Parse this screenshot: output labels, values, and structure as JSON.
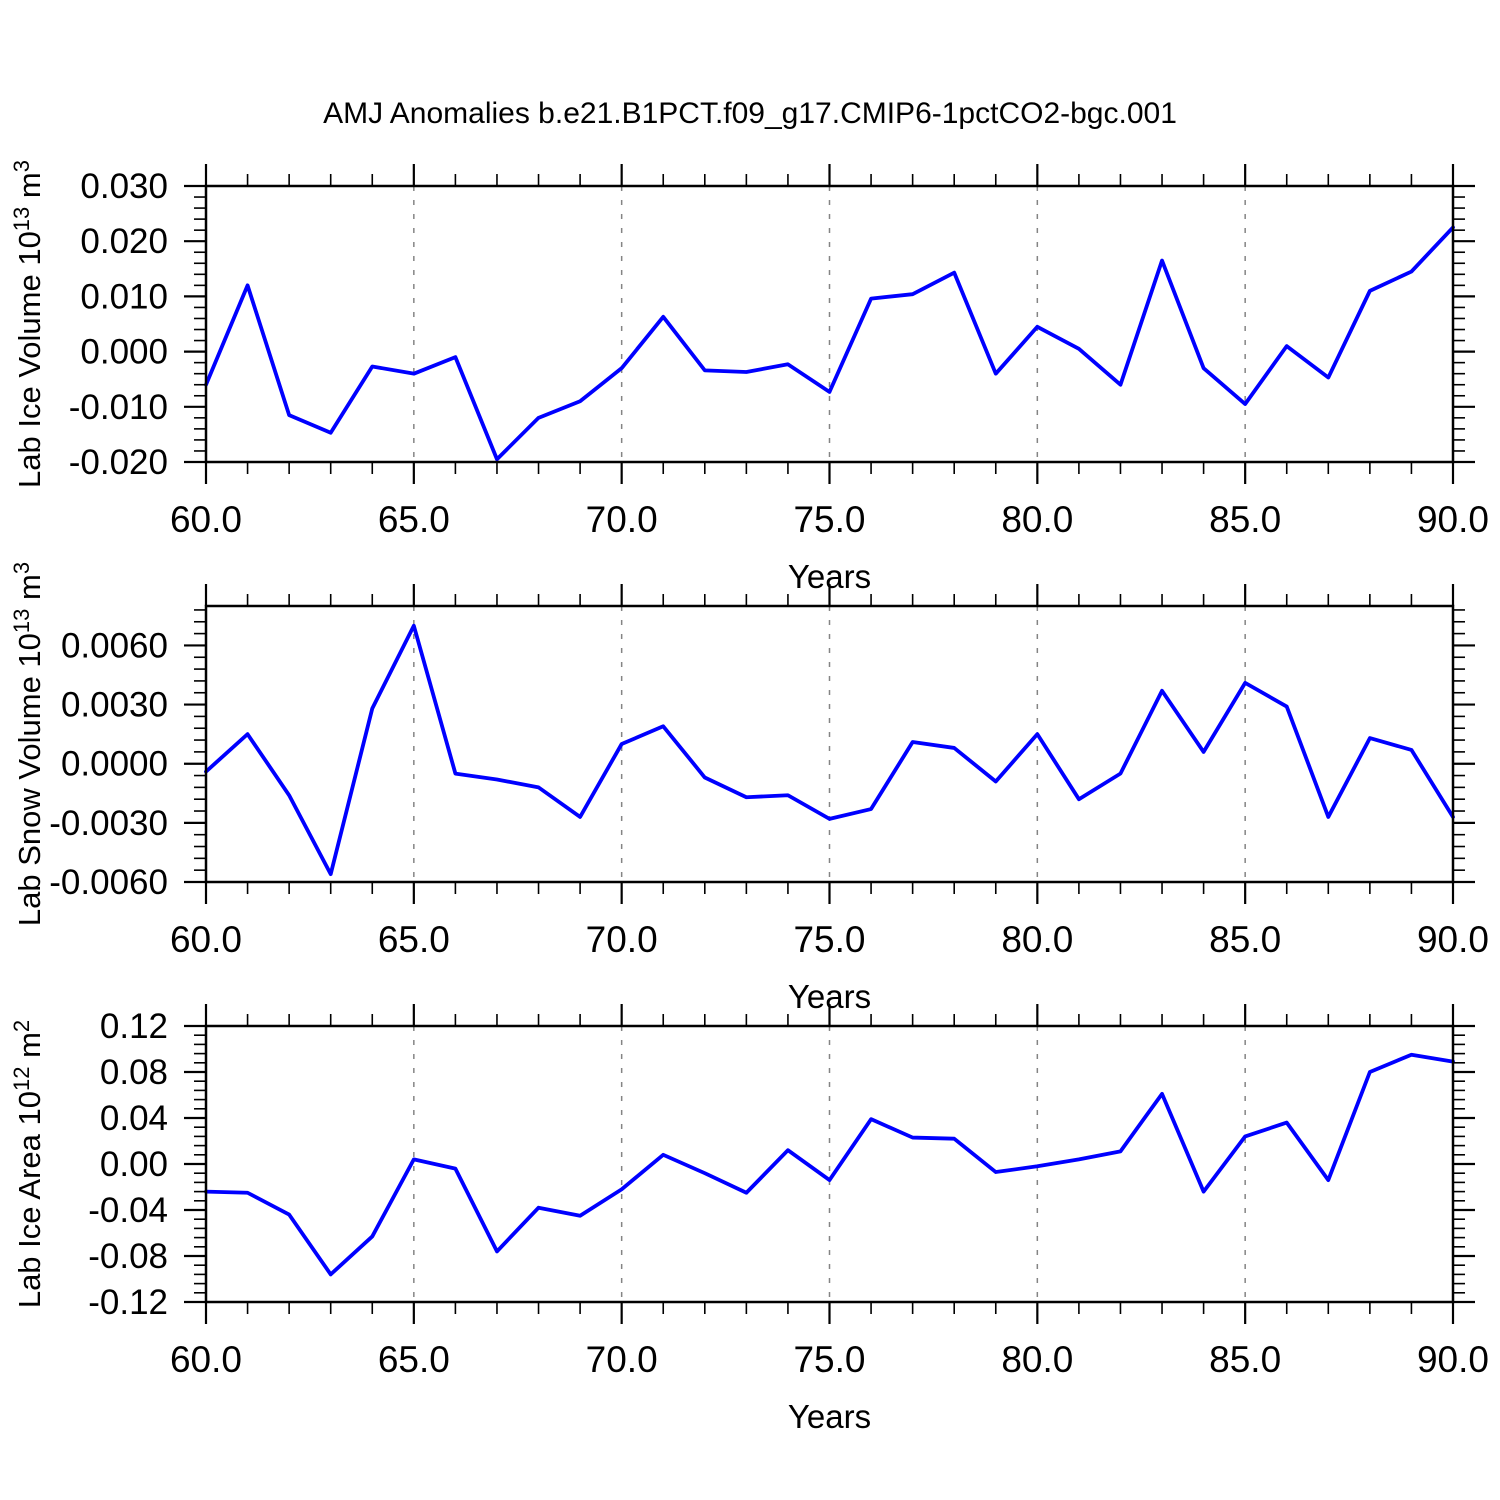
{
  "title": "AMJ Anomalies b.e21.B1PCT.f09_g17.CMIP6-1pctCO2-bgc.001",
  "colors": {
    "line": "#0000ff",
    "axis": "#000000",
    "grid": "#848484",
    "background": "#ffffff"
  },
  "chart_data": {
    "type": "line",
    "suptitle": "AMJ Anomalies b.e21.B1PCT.f09_g17.CMIP6-1pctCO2-bgc.001",
    "legend": "none",
    "grid": "vertical-dashed",
    "x": {
      "label": "Years",
      "range": [
        60,
        90
      ],
      "tick_values": [
        60,
        65,
        70,
        75,
        80,
        85,
        90
      ],
      "tick_labels": [
        "60.0",
        "65.0",
        "70.0",
        "75.0",
        "80.0",
        "85.0",
        "90.0"
      ],
      "minor_step": 1,
      "grid_years": [
        65,
        70,
        75,
        80,
        85
      ],
      "years": [
        60,
        61,
        62,
        63,
        64,
        65,
        66,
        67,
        68,
        69,
        70,
        71,
        72,
        73,
        74,
        75,
        76,
        77,
        78,
        79,
        80,
        81,
        82,
        83,
        84,
        85,
        86,
        87,
        88,
        89,
        90
      ]
    },
    "panels": [
      {
        "id": "lab-ice-volume",
        "ylabel_text": "Lab Ice Volume 10^13 m^3",
        "ylabel_parts": [
          {
            "t": "Lab Ice Volume 10"
          },
          {
            "t": "13",
            "sup": true
          },
          {
            "t": " m"
          },
          {
            "t": "3",
            "sup": true
          }
        ],
        "ylim": [
          -0.02,
          0.03
        ],
        "ytick_values": [
          0.03,
          0.02,
          0.01,
          0.0,
          -0.01,
          -0.02
        ],
        "ytick_labels": [
          "0.030",
          "0.020",
          "0.010",
          "0.000",
          "-0.010",
          "-0.020"
        ],
        "y_minor_step": 0.002,
        "values": [
          -0.006,
          0.012,
          -0.0115,
          -0.0147,
          -0.0027,
          -0.004,
          -0.001,
          -0.0195,
          -0.012,
          -0.009,
          -0.003,
          0.0063,
          -0.0034,
          -0.0037,
          -0.0023,
          -0.0073,
          0.0096,
          0.0104,
          0.0143,
          -0.004,
          0.0045,
          0.0005,
          -0.006,
          0.0165,
          -0.003,
          -0.0095,
          0.001,
          -0.0047,
          0.011,
          0.0145,
          0.0225
        ]
      },
      {
        "id": "lab-snow-volume",
        "ylabel_text": "Lab Snow Volume 10^13 m^3",
        "ylabel_parts": [
          {
            "t": "Lab Snow Volume 10"
          },
          {
            "t": "13",
            "sup": true
          },
          {
            "t": " m"
          },
          {
            "t": "3",
            "sup": true
          }
        ],
        "ylim": [
          -0.006,
          0.008
        ],
        "ytick_values": [
          0.006,
          0.003,
          0.0,
          -0.003,
          -0.006
        ],
        "ytick_labels": [
          "0.0060",
          "0.0030",
          "0.0000",
          "-0.0030",
          "-0.0060"
        ],
        "y_minor_step": 0.0006,
        "values": [
          -0.0004,
          0.0015,
          -0.0016,
          -0.0056,
          0.0028,
          0.007,
          -0.0005,
          -0.0008,
          -0.0012,
          -0.0027,
          0.001,
          0.0019,
          -0.0007,
          -0.0017,
          -0.0016,
          -0.0028,
          -0.0023,
          0.0011,
          0.0008,
          -0.0009,
          0.0015,
          -0.0018,
          -0.0005,
          0.0037,
          0.0006,
          0.0041,
          0.0029,
          -0.0027,
          0.0013,
          0.0007,
          -0.0027
        ]
      },
      {
        "id": "lab-ice-area",
        "ylabel_text": "Lab Ice Area 10^12 m^2",
        "ylabel_parts": [
          {
            "t": "Lab Ice Area 10"
          },
          {
            "t": "12",
            "sup": true
          },
          {
            "t": " m"
          },
          {
            "t": "2",
            "sup": true
          }
        ],
        "ylim": [
          -0.12,
          0.12
        ],
        "ytick_values": [
          0.12,
          0.08,
          0.04,
          0.0,
          -0.04,
          -0.08,
          -0.12
        ],
        "ytick_labels": [
          "0.12",
          "0.08",
          "0.04",
          "0.00",
          "-0.04",
          "-0.08",
          "-0.12"
        ],
        "y_minor_step": 0.008,
        "values": [
          -0.024,
          -0.025,
          -0.044,
          -0.096,
          -0.063,
          0.004,
          -0.004,
          -0.076,
          -0.038,
          -0.045,
          -0.022,
          0.008,
          -0.008,
          -0.025,
          0.012,
          -0.014,
          0.039,
          0.023,
          0.022,
          -0.007,
          -0.002,
          0.004,
          0.011,
          0.061,
          -0.024,
          0.024,
          0.036,
          -0.014,
          0.08,
          0.095,
          0.089
        ]
      }
    ]
  }
}
